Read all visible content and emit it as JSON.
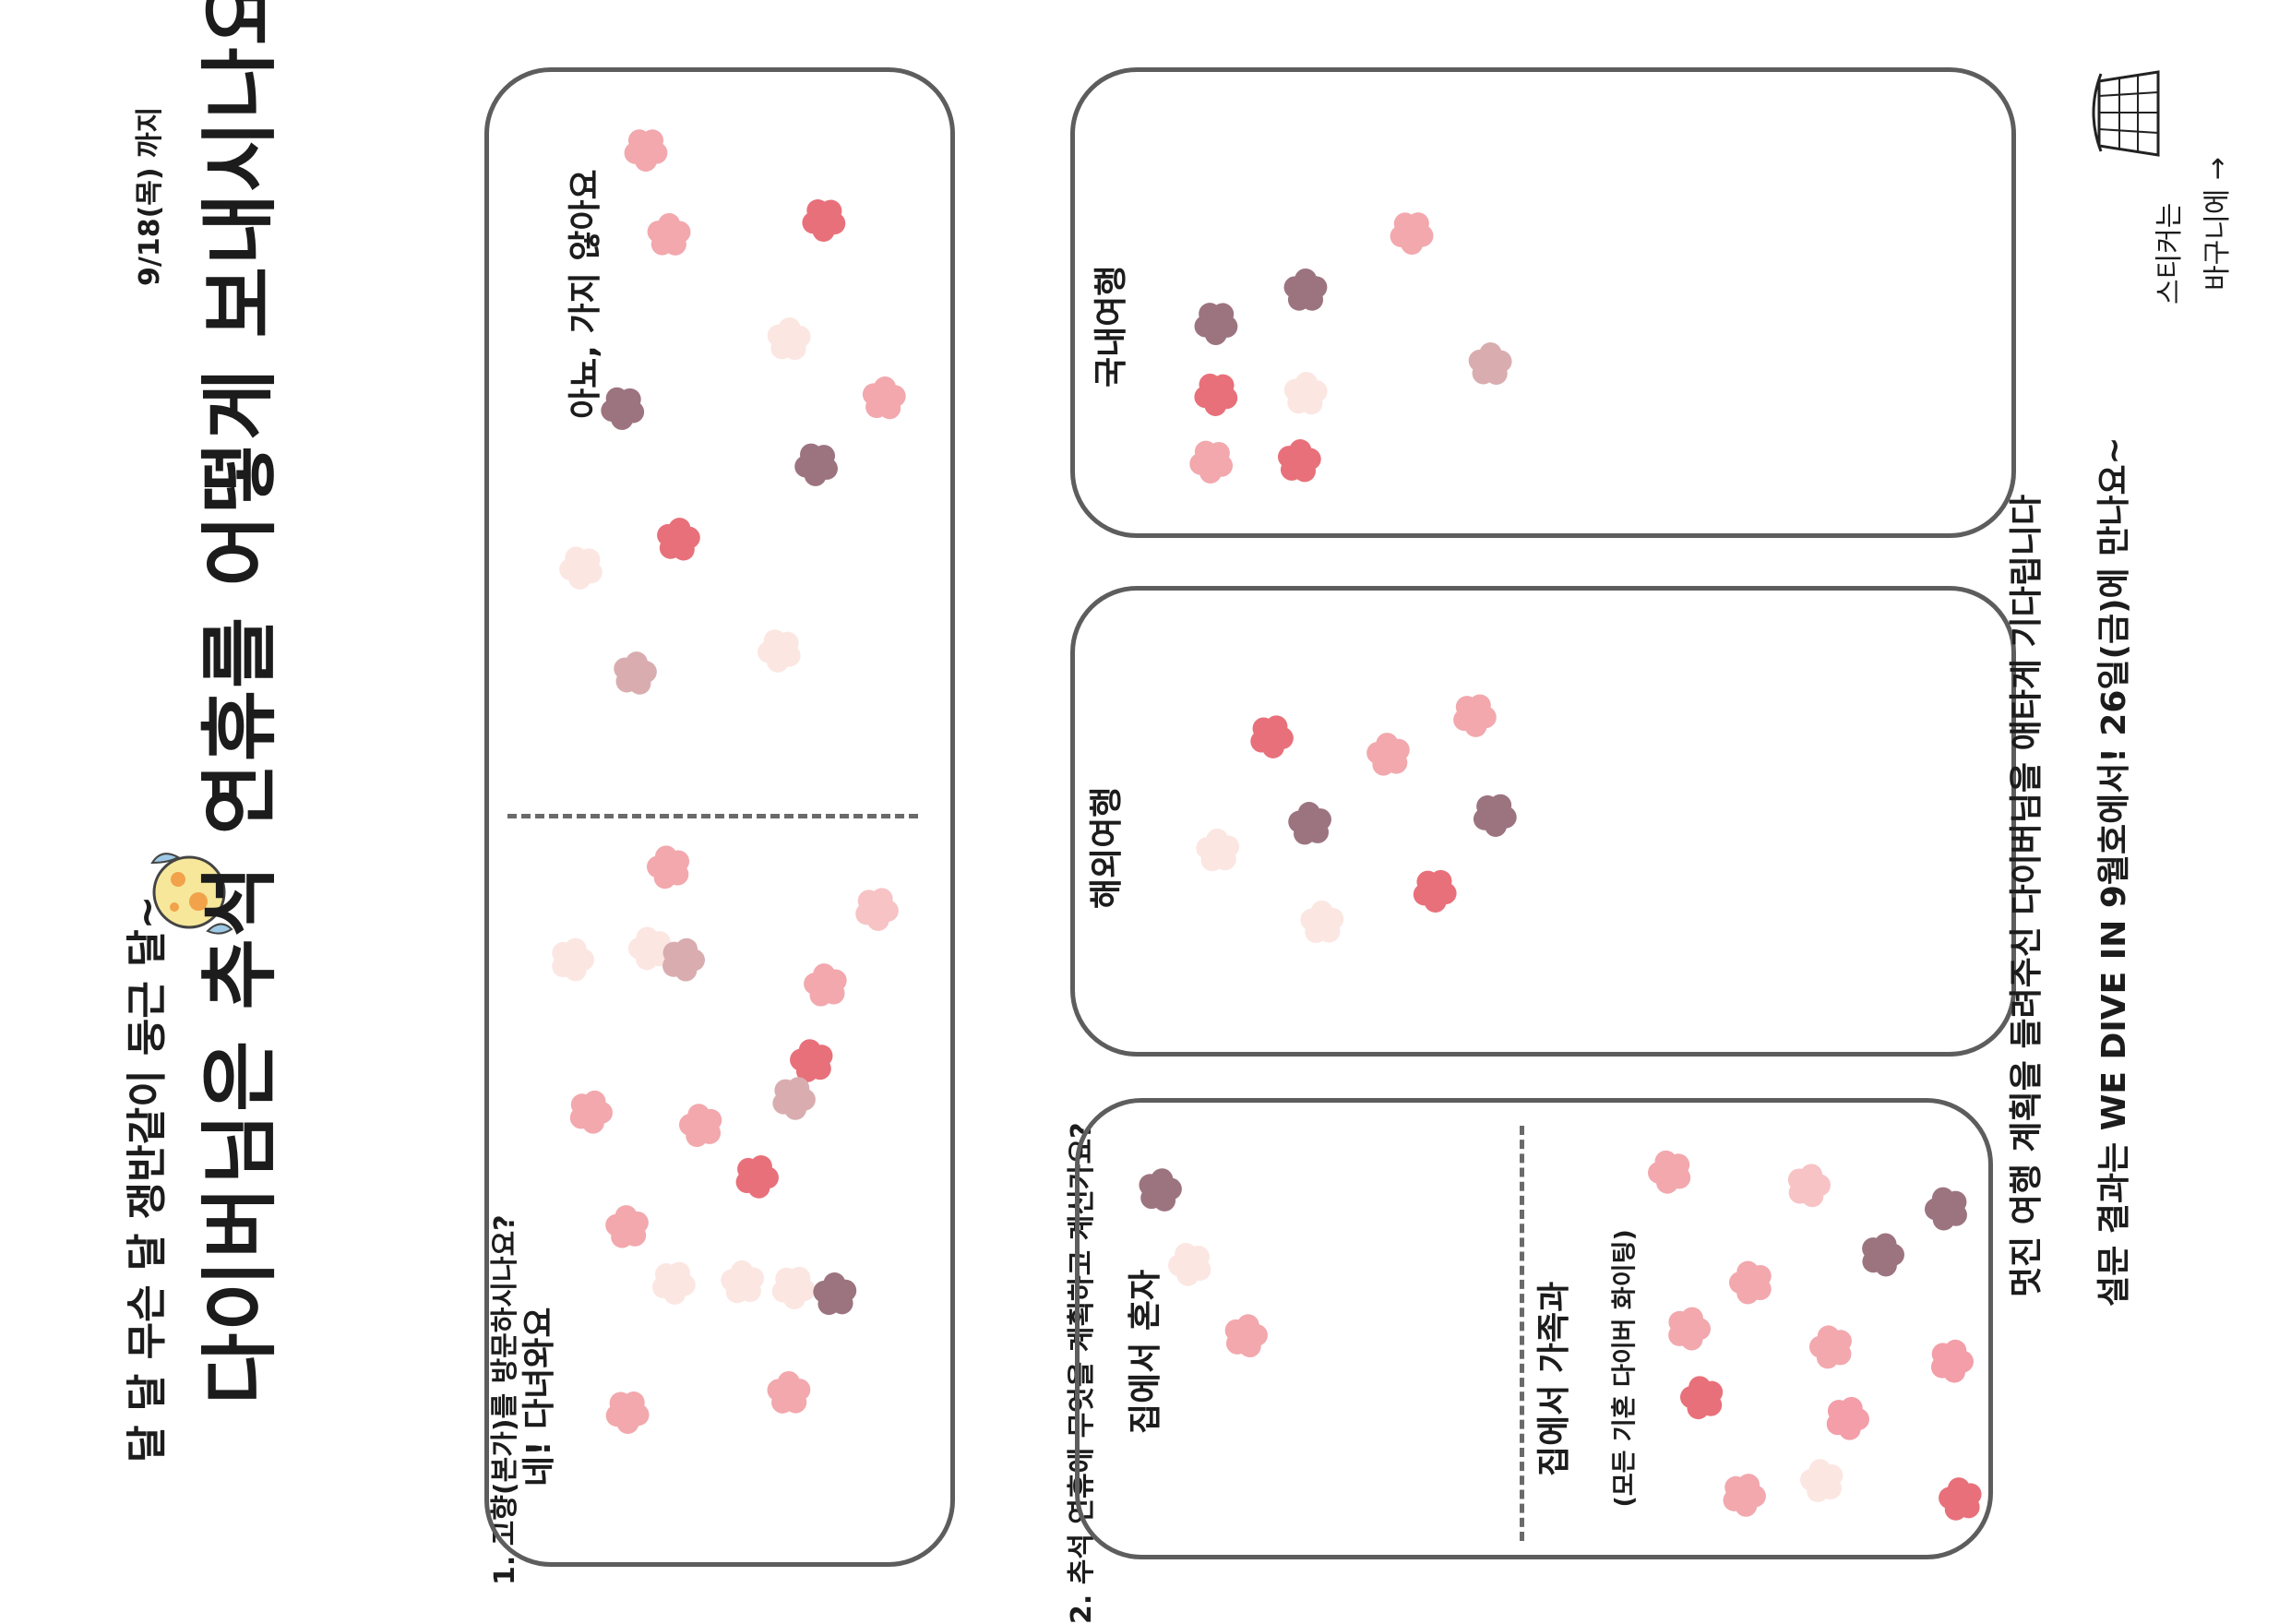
{
  "header": {
    "deadline": "9/18(목) 까지",
    "subtitle": "달 달 무슨 달 쟁반같이 둥근 달~",
    "title": "다이버님은 추석 연휴를 어떻게 보내시나요?"
  },
  "question1": {
    "label": "1. 고향(본가)를 방문하시나요?",
    "option_yes": "네! 다녀와요",
    "option_no": "아뇨, 가지 않아요"
  },
  "question2": {
    "label": "2. 추석 연휴에 무엇을 계획하고 계신가요?",
    "option_alone": "집에서 혼자",
    "option_family": "집에서 가족과",
    "option_family_note": "(모든 기혼 다이버 화이팅)",
    "option_abroad": "해외여행",
    "option_domestic": "국내여행"
  },
  "footer": {
    "line1": "멋진 여행 계획을 들려주신 다이버님을 애타게 기다립니다",
    "line2": "설문 결과는 WE DIVE IN 9월호에서! 26일(금)에 만나요~"
  },
  "sticker_basket": {
    "note_line1": "스티커는",
    "note_line2": "바구니에 →"
  },
  "colors": {
    "border": "#5d5d5d",
    "flower_palette": [
      "#f2a8ad",
      "#e8707a",
      "#f7c3c5",
      "#fbe6e2",
      "#9c7480",
      "#d9adb0",
      "#f39ea8"
    ]
  }
}
